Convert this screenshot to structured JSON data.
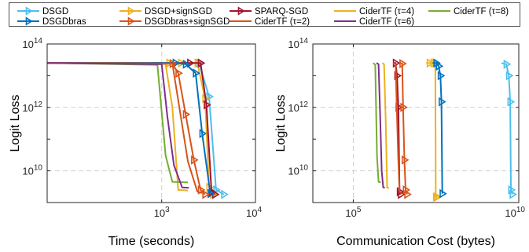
{
  "colors": {
    "grid": "#cfcfcf",
    "axis": "#262626"
  },
  "legend": {
    "placement": "top",
    "entries": [
      {
        "label": "DSGD",
        "color": "#4DBEEE",
        "marker": "triangle-right"
      },
      {
        "label": "DSGD+signSGD",
        "color": "#EDB120",
        "marker": "triangle-right"
      },
      {
        "label": "SPARQ-SGD",
        "color": "#A2142F",
        "marker": "triangle-right"
      },
      {
        "label": "CiderTF (τ=4)",
        "color": "#EDB120",
        "marker": "none"
      },
      {
        "label": "CiderTF (τ=8)",
        "color": "#77AC30",
        "marker": "none"
      },
      {
        "label": "DSGDbras",
        "color": "#0072BD",
        "marker": "triangle-right"
      },
      {
        "label": "DSGDbras+signSGD",
        "color": "#D95319",
        "marker": "triangle-right"
      },
      {
        "label": "CiderTF (τ=2)",
        "color": "#D95319",
        "marker": "none"
      },
      {
        "label": "CiderTF (τ=6)",
        "color": "#7E2F8E",
        "marker": "none"
      }
    ]
  },
  "chart_data": [
    {
      "type": "line",
      "xlabel": "Time (seconds)",
      "ylabel": "Logit Loss",
      "x_scale": "log",
      "y_scale": "log",
      "xlim": [
        60,
        10000
      ],
      "ylim": [
        1000000000.0,
        100000000000000.0
      ],
      "x_ticks": [
        {
          "label": "10^3",
          "value": 1000
        },
        {
          "label": "10^4",
          "value": 10000
        }
      ],
      "y_ticks": [
        {
          "label": "10^10",
          "value": 10000000000.0
        },
        {
          "label": "10^12",
          "value": 1000000000000.0
        },
        {
          "label": "10^14",
          "value": 100000000000000.0
        }
      ],
      "grid": true,
      "series": [
        {
          "name": "DSGD",
          "color": "#4DBEEE",
          "marker": "triangle-right",
          "points": [
            [
              60,
              25000000000000.0
            ],
            [
              2500,
              25000000000000.0
            ],
            [
              3200,
              2200000000000.0
            ],
            [
              3800,
              2500000000.0
            ],
            [
              4600,
              1800000000.0
            ]
          ]
        },
        {
          "name": "DSGD+signSGD",
          "color": "#EDB120",
          "marker": "triangle-right",
          "points": [
            [
              60,
              25000000000000.0
            ],
            [
              1200,
              25000000000000.0
            ],
            [
              1600,
              25000000000000.0
            ],
            [
              2400,
              25000000000000.0
            ],
            [
              2900,
              1900000000000.0
            ],
            [
              3200,
              3000000000.0
            ],
            [
              3500,
              1800000000.0
            ]
          ]
        },
        {
          "name": "SPARQ-SGD",
          "color": "#A2142F",
          "marker": "triangle-right",
          "points": [
            [
              60,
              25000000000000.0
            ],
            [
              2000,
              25000000000000.0
            ],
            [
              2600,
              25000000000000.0
            ],
            [
              3000,
              1200000000000.0
            ],
            [
              3400,
              2200000000.0
            ],
            [
              3700,
              1800000000.0
            ]
          ]
        },
        {
          "name": "CiderTF (τ=4)",
          "color": "#EDB120",
          "points": [
            [
              60,
              25000000000000.0
            ],
            [
              1100,
              23000000000000.0
            ],
            [
              1300,
              1000000000000.0
            ],
            [
              1500,
              2500000000.0
            ],
            [
              1900,
              2400000000.0
            ]
          ]
        },
        {
          "name": "CiderTF (τ=8)",
          "color": "#77AC30",
          "points": [
            [
              60,
              25000000000000.0
            ],
            [
              900,
              22000000000000.0
            ],
            [
              1100,
              30000000000.0
            ],
            [
              1300,
              4500000000.0
            ],
            [
              1900,
              4300000000.0
            ]
          ]
        },
        {
          "name": "DSGDbras",
          "color": "#0072BD",
          "marker": "triangle-right",
          "points": [
            [
              60,
              25000000000000.0
            ],
            [
              1400,
              25000000000000.0
            ],
            [
              1800,
              23000000000000.0
            ],
            [
              2300,
              12000000000000.0
            ],
            [
              2700,
              150000000000.0
            ],
            [
              3300,
              1900000000.0
            ]
          ]
        },
        {
          "name": "DSGDbras+signSGD",
          "color": "#D95319",
          "marker": "triangle-right",
          "points": [
            [
              60,
              25000000000000.0
            ],
            [
              1300,
              24000000000000.0
            ],
            [
              1500,
              12000000000000.0
            ],
            [
              1800,
              600000000000.0
            ],
            [
              2200,
              22000000000.0
            ],
            [
              2600,
              2500000000.0
            ],
            [
              2900,
              1800000000.0
            ]
          ]
        },
        {
          "name": "CiderTF (τ=2)",
          "color": "#D95319",
          "points": [
            [
              60,
              25000000000000.0
            ],
            [
              1300,
              24000000000000.0
            ],
            [
              1600,
              500000000000.0
            ],
            [
              1900,
              20000000000.0
            ],
            [
              2400,
              2200000000.0
            ],
            [
              2700,
              2000000000.0
            ]
          ]
        },
        {
          "name": "CiderTF (τ=6)",
          "color": "#7E2F8E",
          "points": [
            [
              60,
              25000000000000.0
            ],
            [
              1000,
              23000000000000.0
            ],
            [
              1150,
              500000000000.0
            ],
            [
              1350,
              15000000000.0
            ],
            [
              1650,
              3000000000.0
            ],
            [
              1950,
              2900000000.0
            ]
          ]
        }
      ]
    },
    {
      "type": "line",
      "xlabel": "Communication Cost (bytes)",
      "ylabel": "Logit Loss",
      "x_scale": "log",
      "y_scale": "log",
      "xlim": [
        6000,
        10000000000.0
      ],
      "ylim": [
        1000000000.0,
        100000000000000.0
      ],
      "x_ticks": [
        {
          "label": "10^5",
          "value": 100000.0
        },
        {
          "label": "10^10",
          "value": 10000000000.0
        }
      ],
      "y_ticks": [
        {
          "label": "10^10",
          "value": 10000000000.0
        },
        {
          "label": "10^12",
          "value": 1000000000000.0
        },
        {
          "label": "10^14",
          "value": 100000000000000.0
        }
      ],
      "grid": true,
      "series": [
        {
          "name": "DSGD",
          "color": "#4DBEEE",
          "marker": "triangle-right",
          "points": [
            [
              3000000000.0,
              25000000000000.0
            ],
            [
              4200000000.0,
              23000000000000.0
            ],
            [
              5000000000.0,
              10000000000000.0
            ],
            [
              5500000000.0,
              1500000000000.0
            ],
            [
              5800000000.0,
              2500000000.0
            ],
            [
              6400000000.0,
              1800000000.0
            ]
          ]
        },
        {
          "name": "DSGD+signSGD",
          "color": "#EDB120",
          "marker": "triangle-right",
          "points": [
            [
              16000000.0,
              25000000000000.0
            ],
            [
              20000000.0,
              25000000000000.0
            ],
            [
              26000000.0,
              25000000000000.0
            ],
            [
              30000000.0,
              25000000000000.0
            ],
            [
              31000000.0,
              1500000000.0
            ],
            [
              34000000.0,
              1500000000.0
            ]
          ]
        },
        {
          "name": "SPARQ-SGD",
          "color": "#A2142F",
          "marker": "triangle-right",
          "points": [
            [
              1600000.0,
              25000000000000.0
            ],
            [
              1900000.0,
              25000000000000.0
            ],
            [
              2100000.0,
              10000000000000.0
            ],
            [
              2300000.0,
              1000000000000.0
            ],
            [
              2500000.0,
              2200000000.0
            ],
            [
              2700000.0,
              1800000000.0
            ]
          ]
        },
        {
          "name": "CiderTF (τ=4)",
          "color": "#EDB120",
          "points": [
            [
              750000.0,
              25000000000000.0
            ],
            [
              850000.0,
              23000000000000.0
            ],
            [
              950000.0,
              500000000000.0
            ],
            [
              1050000.0,
              3000000000.0
            ],
            [
              1200000.0,
              2800000000.0
            ]
          ]
        },
        {
          "name": "CiderTF (τ=8)",
          "color": "#77AC30",
          "points": [
            [
              400000.0,
              25000000000000.0
            ],
            [
              460000.0,
              22000000000000.0
            ],
            [
              520000.0,
              30000000000.0
            ],
            [
              580000.0,
              4500000000.0
            ],
            [
              680000.0,
              4300000000.0
            ]
          ]
        },
        {
          "name": "DSGDbras",
          "color": "#0072BD",
          "marker": "triangle-right",
          "points": [
            [
              25000000.0,
              25000000000000.0
            ],
            [
              32000000.0,
              25000000000000.0
            ],
            [
              38000000.0,
              20000000000000.0
            ],
            [
              43000000.0,
              10000000000000.0
            ],
            [
              46000000.0,
              1500000000000.0
            ],
            [
              49000000.0,
              1900000000.0
            ]
          ]
        },
        {
          "name": "DSGDbras+signSGD",
          "color": "#D95319",
          "marker": "triangle-right",
          "points": [
            [
              2600000.0,
              25000000000000.0
            ],
            [
              3000000.0,
              24000000000000.0
            ],
            [
              3200000.0,
              1000000000000.0
            ],
            [
              3500000.0,
              22000000000.0
            ],
            [
              3800000.0,
              2500000000.0
            ],
            [
              4200000.0,
              1800000000.0
            ]
          ]
        },
        {
          "name": "CiderTF (τ=2)",
          "color": "#D95319",
          "points": [
            [
              1600000.0,
              25000000000000.0
            ],
            [
              1900000.0,
              23000000000000.0
            ],
            [
              2100000.0,
              500000000000.0
            ],
            [
              2300000.0,
              20000000000.0
            ],
            [
              2500000.0,
              2200000000.0
            ],
            [
              2800000.0,
              2000000000.0
            ]
          ]
        },
        {
          "name": "CiderTF (τ=6)",
          "color": "#7E2F8E",
          "points": [
            [
              500000.0,
              25000000000000.0
            ],
            [
              580000.0,
              23000000000000.0
            ],
            [
              650000.0,
              500000000000.0
            ],
            [
              720000.0,
              10000000000.0
            ],
            [
              800000.0,
              3000000000.0
            ],
            [
              900000.0,
              2900000000.0
            ]
          ]
        }
      ]
    }
  ]
}
